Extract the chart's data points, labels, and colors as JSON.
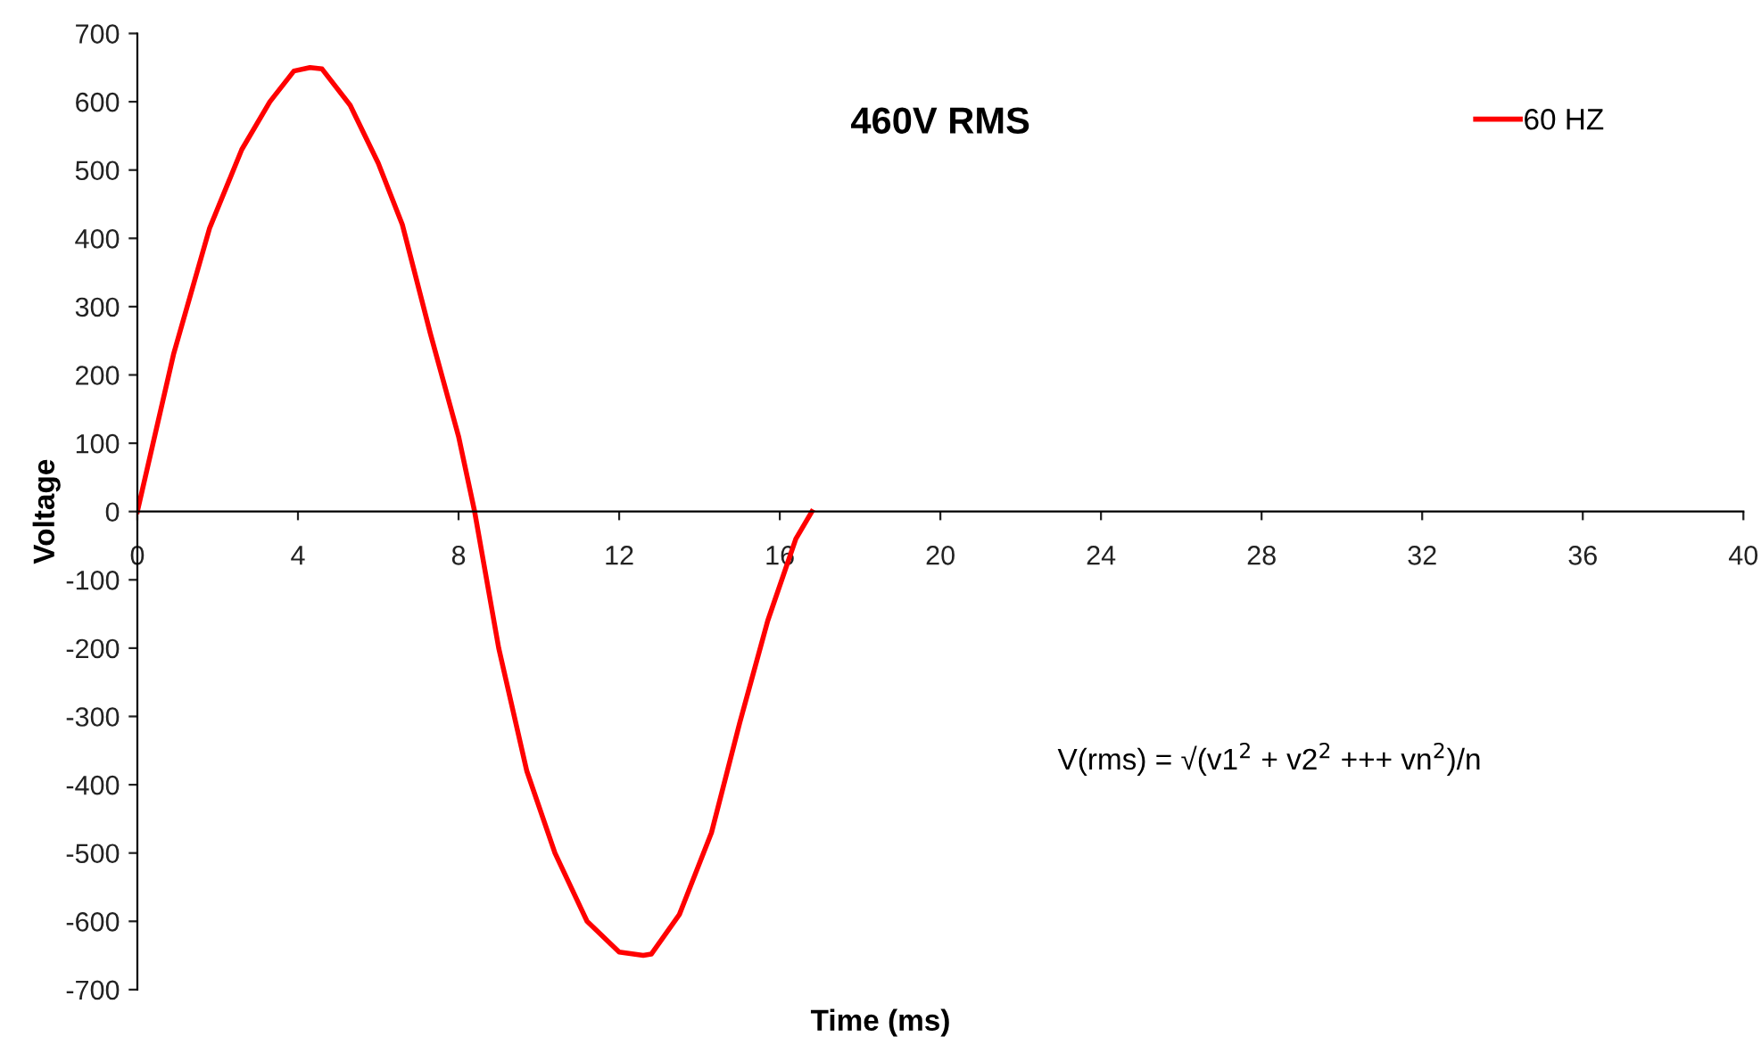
{
  "chart_data": {
    "type": "line",
    "title": "460V RMS",
    "xlabel": "Time (ms)",
    "ylabel": "Voltage",
    "annotations": [
      "V(rms) = √(v1$^{2}$ + v2$^{2}$ +++ vn$^{2}$)/n"
    ],
    "series": [
      {
        "name": "60 HZ",
        "color": "#ff0000",
        "x": [
          0,
          0.9,
          1.8,
          2.6,
          3.3,
          3.9,
          4.3,
          4.6,
          5.3,
          6.0,
          6.6,
          7.3,
          8.0,
          8.4,
          9.0,
          9.7,
          10.4,
          11.2,
          12.0,
          12.6,
          12.8,
          13.5,
          14.3,
          15.0,
          15.7,
          16.4,
          16.8
        ],
        "values": [
          0,
          230,
          415,
          530,
          600,
          645,
          650,
          648,
          595,
          510,
          420,
          260,
          110,
          0,
          -200,
          -380,
          -500,
          -600,
          -645,
          -650,
          -648,
          -590,
          -470,
          -310,
          -160,
          -40,
          0
        ]
      }
    ],
    "xlim": [
      0,
      40
    ],
    "xticks": [
      0,
      4,
      8,
      12,
      16,
      20,
      24,
      28,
      32,
      36,
      40
    ],
    "ylim": [
      -700,
      700
    ],
    "yticks": [
      -700,
      -600,
      -500,
      -400,
      -300,
      -200,
      -100,
      0,
      100,
      200,
      300,
      400,
      500,
      600,
      700
    ],
    "legend": "top right",
    "grid": false,
    "marker": "none",
    "line_style": "solid"
  }
}
